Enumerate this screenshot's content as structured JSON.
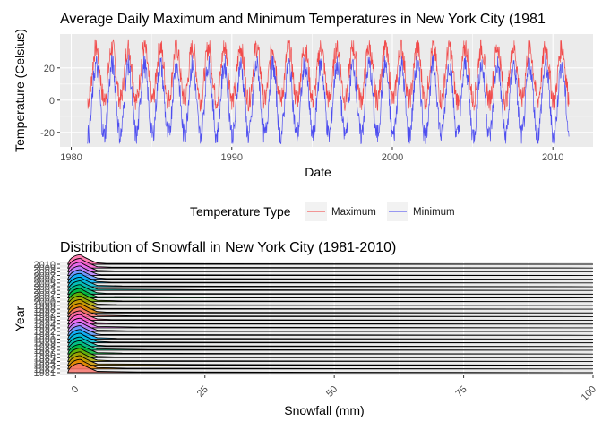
{
  "chart_data": [
    {
      "type": "line",
      "title": "Average Daily Maximum and Minimum Temperatures in New York City (1981",
      "xlabel": "Date",
      "ylabel": "Temperature (Celsius)",
      "x_range": [
        1979.3,
        2012.5
      ],
      "ylim": [
        -29,
        41
      ],
      "x_ticks": [
        1980,
        1990,
        2000,
        2010
      ],
      "y_ticks": [
        -20,
        0,
        20
      ],
      "grid": true,
      "legend": {
        "title": "Temperature Type",
        "placement": "bottom"
      },
      "series": [
        {
          "name": "Maximum",
          "color": "#f23a3a",
          "seasonal_low": 0,
          "seasonal_high": 33,
          "start_year": 1981,
          "end_year": 2011
        },
        {
          "name": "Minimum",
          "color": "#3d3df0",
          "seasonal_low": -22,
          "seasonal_high": 22,
          "start_year": 1981,
          "end_year": 2011
        }
      ]
    },
    {
      "type": "ridgeline",
      "title": "Distribution of Snowfall in New York City (1981-2010)",
      "xlabel": "Snowfall (mm)",
      "ylabel": "Year",
      "xlim": [
        -3,
        100
      ],
      "x_ticks": [
        0,
        25,
        50,
        75,
        100
      ],
      "grid": true,
      "categories": [
        "1981",
        "1982",
        "1983",
        "1984",
        "1985",
        "1986",
        "1987",
        "1988",
        "1989",
        "1990",
        "1991",
        "1992",
        "1993",
        "1994",
        "1995",
        "1996",
        "1997",
        "1998",
        "1999",
        "2000",
        "2001",
        "2002",
        "2003",
        "2004",
        "2005",
        "2006",
        "2007",
        "2008",
        "2009",
        "2010"
      ],
      "max_snowfall": [
        12,
        10,
        22,
        7,
        8,
        9,
        14,
        6,
        7,
        8,
        5,
        10,
        12,
        9,
        7,
        11,
        6,
        5,
        8,
        9,
        31,
        6,
        24,
        9,
        7,
        6,
        5,
        8,
        7,
        6
      ]
    }
  ]
}
